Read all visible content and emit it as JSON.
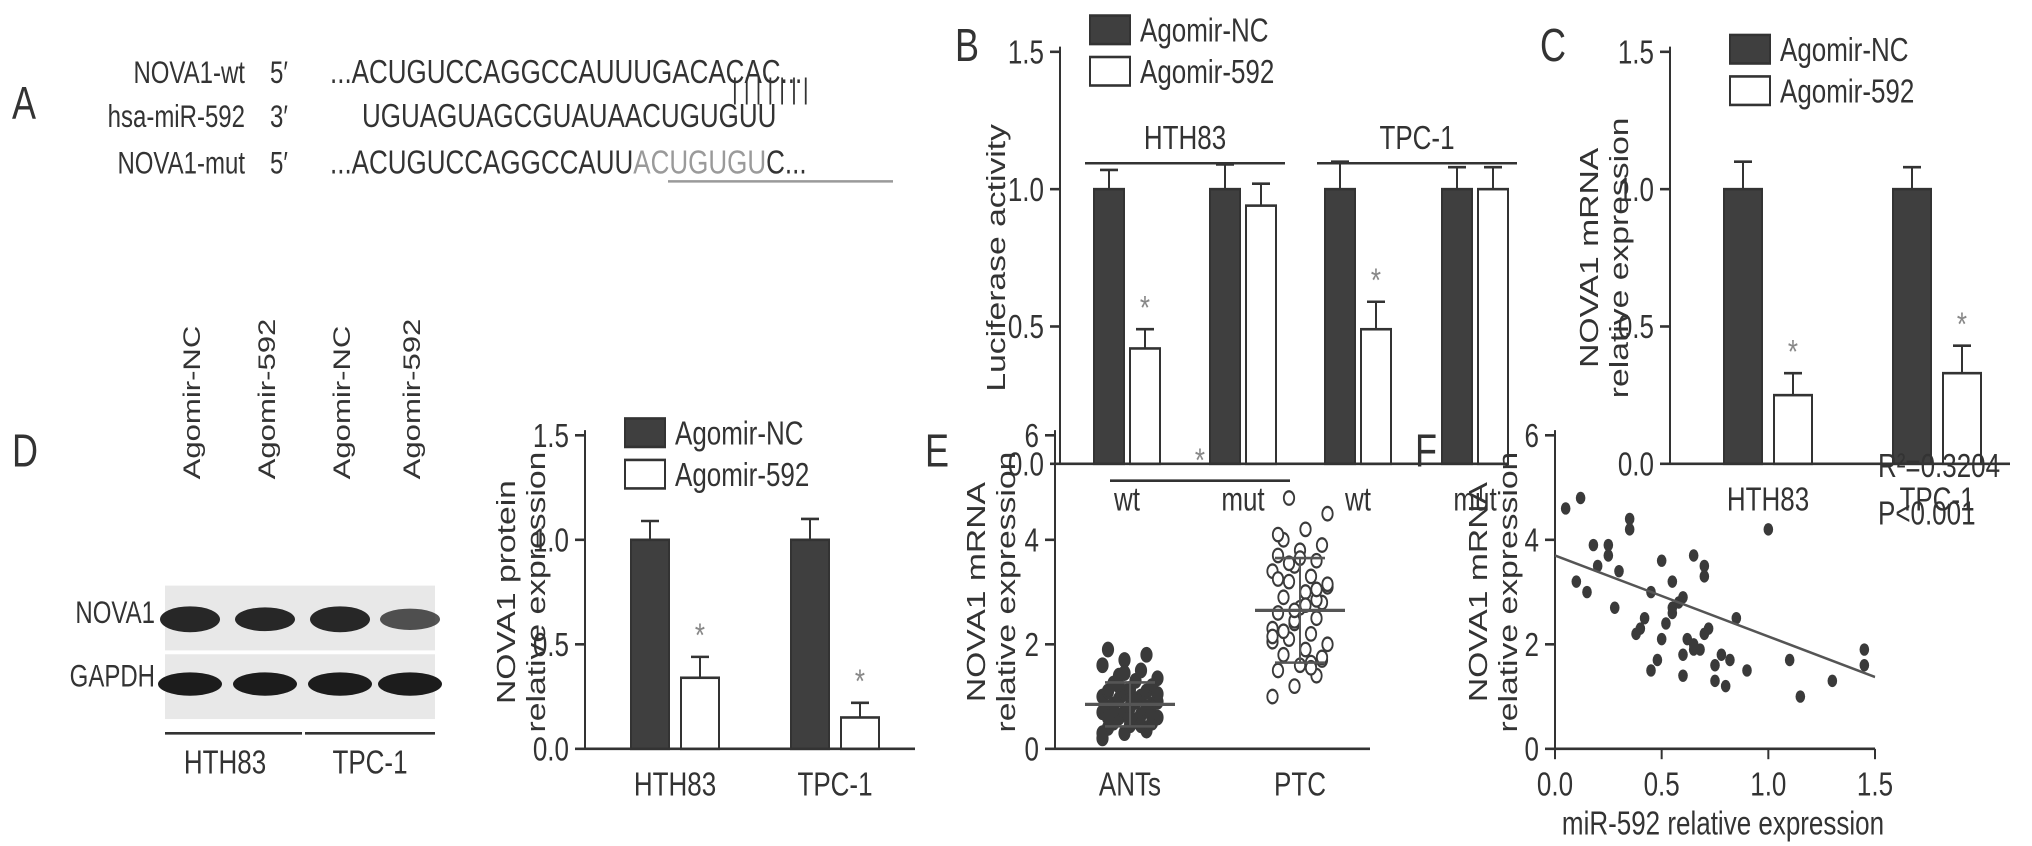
{
  "panel_labels": [
    "A",
    "B",
    "C",
    "D",
    "E",
    "F"
  ],
  "colors": {
    "nc_bar": "#3f3f3f",
    "agomir_bar": "#ffffff",
    "axis": "#333333",
    "asterisk": "#888888",
    "mut_underline": "#9a9a9a",
    "text": "#333333"
  },
  "panel_a": {
    "rows": [
      {
        "name": "NOVA1-wt",
        "end": "5′",
        "seq": "...ACUGUCCAGGCCAUUUGACACAC..."
      },
      {
        "name": "hsa-miR-592",
        "end": "3′",
        "seq": "UGUAGUAGCGUAUAACUGUGUU"
      },
      {
        "name": "NOVA1-mut",
        "end": "5′",
        "seq_prefix": "...ACUGUCCAGGCCAUU",
        "seq_mut": "ACUGUGU",
        "seq_suffix": "C..."
      }
    ],
    "pair_marks": "| | | | | | |"
  },
  "panel_d_blot": {
    "lane_labels": [
      "Agomir-NC",
      "Agomir-592",
      "Agomir-NC",
      "Agomir-592"
    ],
    "band_rows": [
      "NOVA1",
      "GAPDH"
    ],
    "group_labels": [
      "HTH83",
      "TPC-1"
    ]
  },
  "chart_data": [
    {
      "panel": "B",
      "type": "bar",
      "ylabel": "Luciferase activity",
      "ylim": [
        0,
        1.5
      ],
      "yticks": [
        "0.0",
        "0.5",
        "1.0",
        "1.5"
      ],
      "groups": [
        {
          "label": "HTH83",
          "categories": [
            "wt",
            "mut"
          ]
        },
        {
          "label": "TPC-1",
          "categories": [
            "wt",
            "mut"
          ]
        }
      ],
      "categories": [
        "wt",
        "mut",
        "wt",
        "mut"
      ],
      "series": [
        {
          "name": "Agomir-NC",
          "values": [
            1.0,
            1.0,
            1.0,
            1.0
          ],
          "errors": [
            0.07,
            0.09,
            0.1,
            0.08
          ]
        },
        {
          "name": "Agomir-592",
          "values": [
            0.42,
            0.94,
            0.49,
            1.0
          ],
          "errors": [
            0.07,
            0.08,
            0.1,
            0.08
          ]
        }
      ],
      "significance": [
        0,
        2
      ],
      "asterisk": "*",
      "legend": "top"
    },
    {
      "panel": "C",
      "type": "bar",
      "ylabel_lines": [
        "NOVA1 mRNA",
        "relative expression"
      ],
      "ylim": [
        0,
        1.5
      ],
      "yticks": [
        "0.0",
        "0.5",
        "1.0",
        "1.5"
      ],
      "categories": [
        "HTH83",
        "TPC-1"
      ],
      "series": [
        {
          "name": "Agomir-NC",
          "values": [
            1.0,
            1.0
          ],
          "errors": [
            0.1,
            0.08
          ]
        },
        {
          "name": "Agomir-592",
          "values": [
            0.25,
            0.33
          ],
          "errors": [
            0.08,
            0.1
          ]
        }
      ],
      "significance": [
        0,
        1
      ],
      "asterisk": "*",
      "legend": "top"
    },
    {
      "panel": "D",
      "type": "bar",
      "ylabel_lines": [
        "NOVA1 protein",
        "relative expression"
      ],
      "ylim": [
        0,
        1.5
      ],
      "yticks": [
        "0.0",
        "0.5",
        "1.0",
        "1.5"
      ],
      "categories": [
        "HTH83",
        "TPC-1"
      ],
      "series": [
        {
          "name": "Agomir-NC",
          "values": [
            1.0,
            1.0
          ],
          "errors": [
            0.09,
            0.1
          ]
        },
        {
          "name": "Agomir-592",
          "values": [
            0.34,
            0.15
          ],
          "errors": [
            0.1,
            0.07
          ]
        }
      ],
      "significance": [
        0,
        1
      ],
      "asterisk": "*",
      "legend": "top"
    },
    {
      "panel": "E",
      "type": "scatter",
      "ylabel_lines": [
        "NOVA1 mRNA",
        "relative expression"
      ],
      "ylim": [
        0,
        6
      ],
      "yticks": [
        "0",
        "2",
        "4",
        "6"
      ],
      "categories": [
        "ANTs",
        "PTC"
      ],
      "groups": [
        {
          "name": "ANTs",
          "mean": 0.85,
          "sd": 0.42,
          "values": [
            0.2,
            0.3,
            0.35,
            0.4,
            0.45,
            0.5,
            0.5,
            0.55,
            0.6,
            0.6,
            0.65,
            0.7,
            0.7,
            0.75,
            0.8,
            0.8,
            0.85,
            0.85,
            0.9,
            0.9,
            0.95,
            1.0,
            1.0,
            1.05,
            1.1,
            1.1,
            1.15,
            1.2,
            1.25,
            1.3,
            1.35,
            1.4,
            1.5,
            1.6,
            1.7,
            1.8,
            1.9,
            0.55,
            0.65,
            0.75,
            0.95,
            1.05,
            1.2,
            0.45,
            0.3,
            1.45,
            0.8,
            0.6
          ]
        },
        {
          "name": "PTC",
          "mean": 2.65,
          "sd": 1.0,
          "values": [
            1.0,
            1.2,
            1.4,
            1.5,
            1.6,
            1.7,
            1.8,
            1.9,
            2.0,
            2.1,
            2.2,
            2.3,
            2.4,
            2.5,
            2.6,
            2.7,
            2.8,
            2.9,
            3.0,
            3.1,
            3.2,
            3.3,
            3.4,
            3.5,
            3.6,
            3.7,
            3.8,
            3.9,
            4.0,
            4.2,
            4.5,
            4.8,
            1.65,
            2.05,
            2.45,
            2.85,
            3.25,
            3.65,
            1.75,
            2.25,
            2.75,
            3.15,
            3.55,
            1.55,
            2.15,
            2.65,
            3.05,
            4.1
          ]
        }
      ],
      "significance": "*"
    },
    {
      "panel": "F",
      "type": "scatter",
      "xlabel": "miR-592 relative expression",
      "ylabel_lines": [
        "NOVA1 mRNA",
        "relative expression"
      ],
      "xlim": [
        0,
        1.5
      ],
      "ylim": [
        0,
        6
      ],
      "xticks": [
        "0.0",
        "0.5",
        "1.0",
        "1.5"
      ],
      "yticks": [
        "0",
        "2",
        "4",
        "6"
      ],
      "x": [
        0.05,
        0.12,
        0.18,
        0.25,
        0.3,
        0.35,
        0.1,
        0.2,
        0.28,
        0.38,
        0.42,
        0.45,
        0.5,
        0.55,
        0.48,
        0.52,
        0.58,
        0.6,
        0.62,
        0.65,
        0.68,
        0.7,
        0.72,
        0.75,
        0.78,
        0.8,
        0.82,
        0.85,
        0.55,
        0.6,
        0.65,
        0.7,
        0.75,
        0.9,
        1.0,
        1.1,
        1.15,
        1.3,
        1.45,
        1.45,
        0.4,
        0.45,
        0.5,
        0.55,
        0.6,
        0.65,
        0.7,
        0.35,
        0.25,
        0.15
      ],
      "y": [
        4.6,
        4.8,
        3.9,
        3.7,
        3.4,
        4.2,
        3.2,
        3.5,
        2.7,
        2.2,
        2.5,
        3.0,
        3.6,
        3.2,
        1.7,
        2.4,
        2.8,
        1.8,
        2.1,
        3.7,
        1.9,
        3.5,
        2.3,
        1.6,
        1.8,
        1.2,
        1.7,
        2.5,
        2.7,
        2.9,
        1.9,
        2.2,
        1.3,
        1.5,
        4.2,
        1.7,
        1.0,
        1.3,
        1.9,
        1.6,
        2.3,
        1.5,
        2.1,
        2.6,
        1.4,
        2.0,
        3.3,
        4.4,
        3.9,
        3.0
      ],
      "fit": {
        "intercept": 3.7,
        "slope": -1.55
      },
      "annotation_r2": "R²=0.3204",
      "annotation_p": "P<0.001"
    }
  ]
}
